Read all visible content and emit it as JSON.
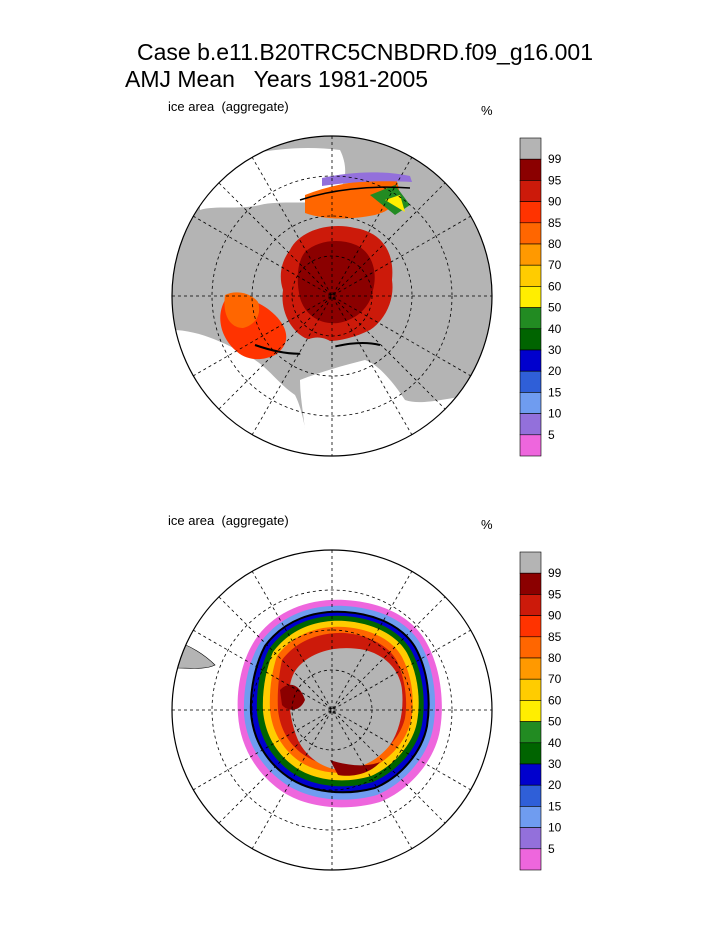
{
  "title": {
    "line1": "Case b.e11.B20TRC5CNBDRD.f09_g16.001",
    "line2": "AMJ Mean   Years 1981-2005"
  },
  "panels": [
    {
      "hemisphere": "north",
      "variable_label": "ice area  (aggregate)",
      "unit_label": "%"
    },
    {
      "hemisphere": "south",
      "variable_label": "ice area  (aggregate)",
      "unit_label": "%"
    }
  ],
  "colorbar": {
    "labels": [
      "99",
      "95",
      "90",
      "85",
      "80",
      "70",
      "60",
      "50",
      "40",
      "30",
      "20",
      "15",
      "10",
      "5"
    ],
    "colors": [
      "#b4b4b4",
      "#8b0000",
      "#cc1a0a",
      "#ff3300",
      "#ff6600",
      "#ff9900",
      "#ffcc00",
      "#ffee00",
      "#228b22",
      "#006400",
      "#0000cd",
      "#2f5fd8",
      "#6f9cf0",
      "#9370db",
      "#ee66dd"
    ],
    "land_color": "#b4b4b4",
    "ocean_color": "#ffffff"
  }
}
